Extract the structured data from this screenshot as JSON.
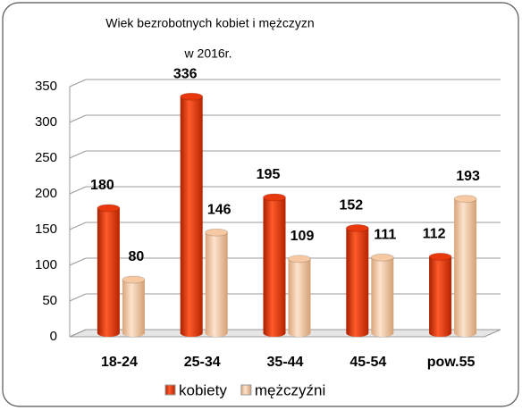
{
  "chart_data": {
    "type": "bar3d",
    "title": "Wiek bezrobotnych  kobiet i mężczyzn",
    "subtitle": "w 2016r.",
    "categories": [
      "18-24",
      "25-34",
      "35-44",
      "45-54",
      "pow.55"
    ],
    "series": [
      {
        "name": "kobiety",
        "color": "#e8380d",
        "values": [
          180,
          336,
          195,
          152,
          112
        ]
      },
      {
        "name": "mężczyźni",
        "color": "#f6c9a2",
        "values": [
          80,
          146,
          109,
          111,
          193
        ]
      }
    ],
    "ylim": [
      0,
      350
    ],
    "yticks": [
      0,
      50,
      100,
      150,
      200,
      250,
      300,
      350
    ],
    "grid": true,
    "legend": "bottom"
  }
}
